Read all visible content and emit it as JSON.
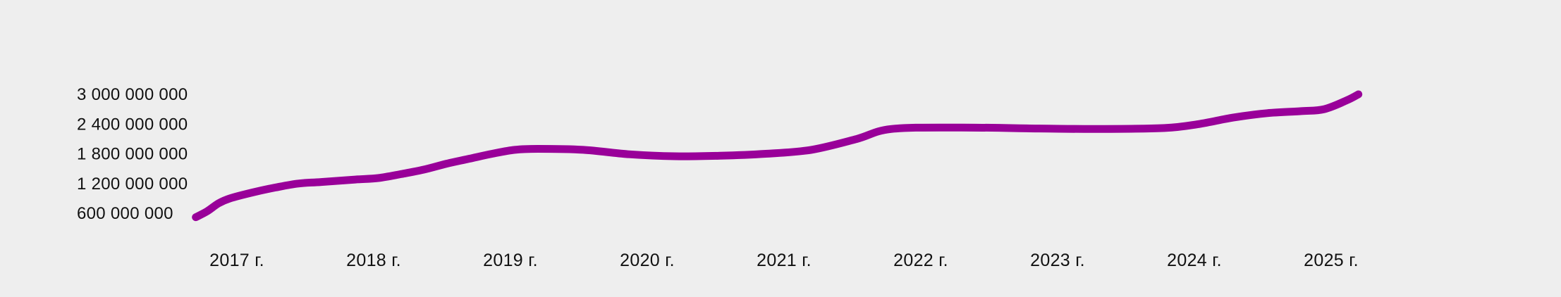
{
  "chart_data": {
    "type": "line",
    "title": "",
    "xlabel": "",
    "ylabel": "",
    "color": "#990099",
    "background": "#eeeeee",
    "grid": false,
    "legend": "none",
    "y_ticks": [
      {
        "value": 600000000,
        "label": "600 000 000"
      },
      {
        "value": 1200000000,
        "label": "1 200 000 000"
      },
      {
        "value": 1800000000,
        "label": "1 800 000 000"
      },
      {
        "value": 2400000000,
        "label": "2 400 000 000"
      },
      {
        "value": 3000000000,
        "label": "3 000 000 000"
      }
    ],
    "x_ticks": [
      {
        "value": "2017-01",
        "label": "2017 г."
      },
      {
        "value": "2018-01",
        "label": "2018 г."
      },
      {
        "value": "2019-01",
        "label": "2019 г."
      },
      {
        "value": "2020-01",
        "label": "2020 г."
      },
      {
        "value": "2021-01",
        "label": "2021 г."
      },
      {
        "value": "2022-01",
        "label": "2022 г."
      },
      {
        "value": "2023-01",
        "label": "2023 г."
      },
      {
        "value": "2024-01",
        "label": "2024 г."
      },
      {
        "value": "2025-01",
        "label": "2025 г."
      }
    ],
    "series": [
      {
        "points": [
          {
            "x": "2016-11",
            "y": 520000000
          },
          {
            "x": "2016-12",
            "y": 640000000
          },
          {
            "x": "2017-01",
            "y": 800000000
          },
          {
            "x": "2017-02",
            "y": 900000000
          },
          {
            "x": "2017-04",
            "y": 1020000000
          },
          {
            "x": "2017-06",
            "y": 1120000000
          },
          {
            "x": "2017-08",
            "y": 1200000000
          },
          {
            "x": "2017-10",
            "y": 1230000000
          },
          {
            "x": "2018-01",
            "y": 1280000000
          },
          {
            "x": "2018-03",
            "y": 1310000000
          },
          {
            "x": "2018-05",
            "y": 1390000000
          },
          {
            "x": "2018-07",
            "y": 1480000000
          },
          {
            "x": "2018-09",
            "y": 1600000000
          },
          {
            "x": "2018-11",
            "y": 1700000000
          },
          {
            "x": "2019-01",
            "y": 1800000000
          },
          {
            "x": "2019-03",
            "y": 1880000000
          },
          {
            "x": "2019-05",
            "y": 1900000000
          },
          {
            "x": "2019-09",
            "y": 1880000000
          },
          {
            "x": "2020-01",
            "y": 1790000000
          },
          {
            "x": "2020-05",
            "y": 1750000000
          },
          {
            "x": "2020-09",
            "y": 1760000000
          },
          {
            "x": "2021-01",
            "y": 1800000000
          },
          {
            "x": "2021-05",
            "y": 1880000000
          },
          {
            "x": "2021-09",
            "y": 2100000000
          },
          {
            "x": "2021-12",
            "y": 2300000000
          },
          {
            "x": "2022-06",
            "y": 2330000000
          },
          {
            "x": "2023-01",
            "y": 2310000000
          },
          {
            "x": "2023-06",
            "y": 2300000000
          },
          {
            "x": "2023-12",
            "y": 2320000000
          },
          {
            "x": "2024-03",
            "y": 2400000000
          },
          {
            "x": "2024-06",
            "y": 2530000000
          },
          {
            "x": "2024-09",
            "y": 2620000000
          },
          {
            "x": "2024-12",
            "y": 2660000000
          },
          {
            "x": "2025-02",
            "y": 2700000000
          },
          {
            "x": "2025-04",
            "y": 2880000000
          },
          {
            "x": "2025-05",
            "y": 3000000000
          }
        ]
      }
    ]
  }
}
